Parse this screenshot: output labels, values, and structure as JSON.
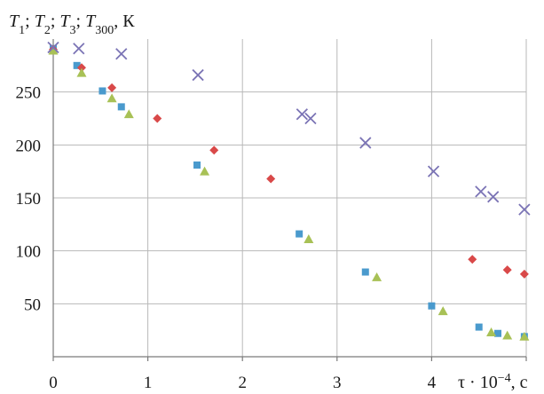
{
  "chart_data": {
    "type": "scatter",
    "ylabel": {
      "parts": [
        {
          "t": "T",
          "i": true
        },
        {
          "t": "1",
          "sub": true
        },
        {
          "t": "; "
        },
        {
          "t": "T",
          "i": true
        },
        {
          "t": "2",
          "sub": true
        },
        {
          "t": "; "
        },
        {
          "t": "T",
          "i": true
        },
        {
          "t": "3",
          "sub": true
        },
        {
          "t": "; "
        },
        {
          "t": "T",
          "i": true
        },
        {
          "t": "300",
          "sub": true
        },
        {
          "t": ", К"
        }
      ]
    },
    "xlabel": {
      "parts": [
        {
          "t": "τ · 10"
        },
        {
          "t": "−4",
          "sup": true
        },
        {
          "t": ", с"
        }
      ]
    },
    "xlim": [
      0,
      5
    ],
    "ylim": [
      0,
      300
    ],
    "x_ticks": [
      "0",
      "1",
      "2",
      "3",
      "4"
    ],
    "y_ticks": [
      "50",
      "100",
      "150",
      "200",
      "250"
    ],
    "grid": true,
    "series": [
      {
        "marker": "square",
        "color": "#4a9acd",
        "points": [
          [
            0.0,
            291
          ],
          [
            0.25,
            275
          ],
          [
            0.52,
            251
          ],
          [
            0.72,
            236
          ],
          [
            1.52,
            181
          ],
          [
            2.6,
            116
          ],
          [
            3.3,
            80
          ],
          [
            4.0,
            48
          ],
          [
            4.5,
            28
          ],
          [
            4.7,
            22
          ],
          [
            4.98,
            19
          ]
        ]
      },
      {
        "marker": "diamond",
        "color": "#d94949",
        "points": [
          [
            0.0,
            290
          ],
          [
            0.3,
            273
          ],
          [
            0.62,
            254
          ],
          [
            1.1,
            225
          ],
          [
            1.7,
            195
          ],
          [
            2.3,
            168
          ],
          [
            4.43,
            92
          ],
          [
            4.8,
            82
          ],
          [
            4.98,
            78
          ]
        ]
      },
      {
        "marker": "triangle",
        "color": "#a8c156",
        "points": [
          [
            0.0,
            289
          ],
          [
            0.3,
            268
          ],
          [
            0.62,
            244
          ],
          [
            0.8,
            229
          ],
          [
            1.6,
            175
          ],
          [
            2.7,
            111
          ],
          [
            3.42,
            75
          ],
          [
            4.12,
            43
          ],
          [
            4.63,
            23
          ],
          [
            4.8,
            20
          ],
          [
            4.98,
            19
          ]
        ]
      },
      {
        "marker": "cross",
        "color": "#7b74b5",
        "points": [
          [
            0.0,
            292
          ],
          [
            0.27,
            291
          ],
          [
            0.72,
            286
          ],
          [
            1.53,
            266
          ],
          [
            2.63,
            229
          ],
          [
            2.72,
            225
          ],
          [
            3.3,
            202
          ],
          [
            4.02,
            175
          ],
          [
            4.52,
            156
          ],
          [
            4.65,
            151
          ],
          [
            4.98,
            139
          ]
        ]
      }
    ]
  }
}
